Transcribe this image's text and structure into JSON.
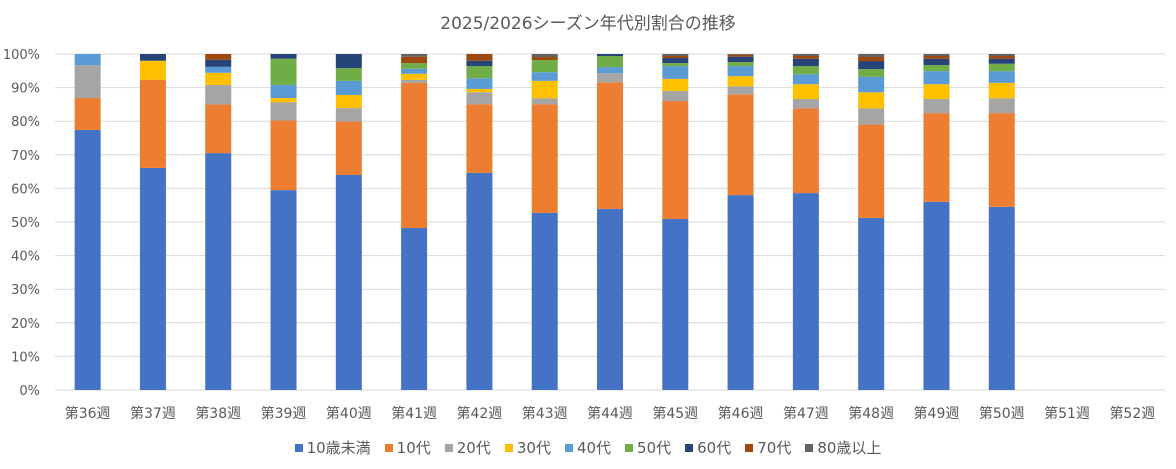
{
  "chart_data": {
    "type": "bar",
    "stacked": "percent",
    "title": "2025/2026シーズン年代別割合の推移",
    "xlabel": "",
    "ylabel": "",
    "ylim": [
      0,
      100
    ],
    "yticks": [
      "0%",
      "10%",
      "20%",
      "30%",
      "40%",
      "50%",
      "60%",
      "70%",
      "80%",
      "90%",
      "100%"
    ],
    "grid": true,
    "legend_position": "bottom",
    "categories": [
      "第36週",
      "第37週",
      "第38週",
      "第39週",
      "第40週",
      "第41週",
      "第42週",
      "第43週",
      "第44週",
      "第45週",
      "第46週",
      "第47週",
      "第48週",
      "第49週",
      "第50週",
      "第51週",
      "第52週"
    ],
    "series": [
      {
        "name": "10歳未満",
        "color": "#4472C4",
        "values": [
          77.4,
          66.1,
          70.5,
          59.5,
          64.0,
          48.2,
          64.6,
          52.7,
          53.9,
          50.9,
          58.0,
          58.6,
          51.2,
          56.0,
          54.5,
          null,
          null
        ]
      },
      {
        "name": "10代",
        "color": "#ED7D31",
        "values": [
          9.5,
          26.2,
          14.5,
          20.7,
          15.9,
          43.2,
          20.4,
          32.3,
          37.7,
          35.1,
          30.0,
          25.2,
          27.8,
          26.4,
          27.9,
          null,
          null
        ]
      },
      {
        "name": "20代",
        "color": "#A5A5A5",
        "values": [
          9.8,
          0,
          5.8,
          5.4,
          4.0,
          0.9,
          3.6,
          1.8,
          2.7,
          3.0,
          2.4,
          2.8,
          4.8,
          4.2,
          4.4,
          null,
          null
        ]
      },
      {
        "name": "30代",
        "color": "#FFC000",
        "values": [
          0,
          5.7,
          3.6,
          1.3,
          3.9,
          1.8,
          1.0,
          5.2,
          0,
          3.6,
          3.0,
          4.4,
          4.8,
          4.4,
          4.6,
          null,
          null
        ]
      },
      {
        "name": "40代",
        "color": "#5B9BD5",
        "values": [
          3.3,
          0,
          1.8,
          3.9,
          4.2,
          1.5,
          3.2,
          2.6,
          1.8,
          3.8,
          3.0,
          3.0,
          4.6,
          3.9,
          3.5,
          null,
          null
        ]
      },
      {
        "name": "50代",
        "color": "#70AD47",
        "values": [
          0,
          0,
          0,
          7.8,
          3.8,
          1.7,
          3.6,
          3.6,
          3.3,
          0.9,
          1.2,
          2.4,
          2.3,
          1.8,
          2.2,
          null,
          null
        ]
      },
      {
        "name": "60代",
        "color": "#264478",
        "values": [
          0,
          2.0,
          2.1,
          1.4,
          4.2,
          0,
          1.6,
          0,
          0.6,
          1.5,
          1.6,
          2.2,
          2.4,
          1.9,
          1.5,
          null,
          null
        ]
      },
      {
        "name": "70代",
        "color": "#9E480E",
        "values": [
          0,
          0,
          1.7,
          0,
          0,
          1.9,
          2.0,
          0.9,
          0,
          0.6,
          0.6,
          0.8,
          1.2,
          0.8,
          0.8,
          null,
          null
        ]
      },
      {
        "name": "80歳以上",
        "color": "#636363",
        "values": [
          0,
          0,
          0,
          0,
          0,
          0.8,
          0,
          0.9,
          0,
          0.6,
          0.2,
          0.6,
          0.9,
          0.6,
          0.6,
          null,
          null
        ]
      }
    ]
  }
}
